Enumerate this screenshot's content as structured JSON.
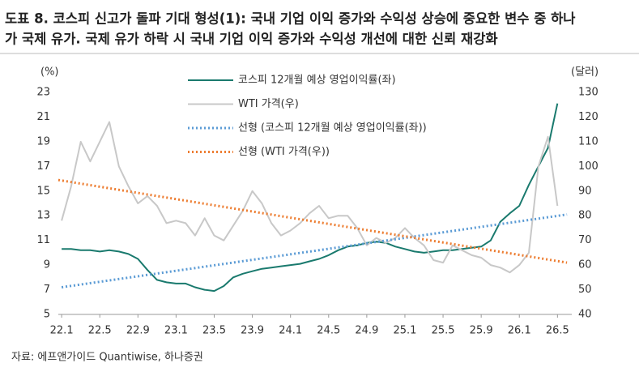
{
  "title_lines": [
    "도표 8. 코스피 신고가 돌파 기대 형성(1): 국내 기업 이익 증가와 수익성 상승에 중요한 변수 중 하나",
    "가 국제 유가. 국제 유가 하락 시 국내 기업 이익 증가와 수익성 개선에 대한 신뢰 재강화"
  ],
  "source": "자료: 에프앤가이드 Quantiwise, 하나증권",
  "chart_data": {
    "type": "line",
    "y_label": "(%)",
    "y2_label": "(달러)",
    "x": [
      0,
      1,
      2,
      3,
      4,
      5,
      6,
      7,
      8,
      9,
      10,
      11,
      12,
      13,
      14,
      15,
      16,
      17,
      18,
      19,
      20,
      21,
      22,
      23,
      24,
      25,
      26,
      27,
      28,
      29,
      30,
      31,
      32,
      33,
      34,
      35,
      36,
      37,
      38,
      39,
      40,
      41,
      42,
      43,
      44,
      45,
      46,
      47,
      48,
      49,
      50,
      51,
      52
    ],
    "xlim": [
      -0.35,
      53.5
    ],
    "xticks": [
      {
        "value": 0,
        "label": "22.1"
      },
      {
        "value": 4,
        "label": "22.5"
      },
      {
        "value": 8,
        "label": "22.9"
      },
      {
        "value": 12,
        "label": "23.1"
      },
      {
        "value": 16,
        "label": "23.5"
      },
      {
        "value": 20,
        "label": "23.9"
      },
      {
        "value": 24,
        "label": "24.1"
      },
      {
        "value": 28,
        "label": "24.5"
      },
      {
        "value": 32,
        "label": "24.9"
      },
      {
        "value": 36,
        "label": "25.1"
      },
      {
        "value": 40,
        "label": "25.5"
      },
      {
        "value": 44,
        "label": "25.9"
      },
      {
        "value": 48,
        "label": "26.1"
      },
      {
        "value": 52,
        "label": "26.5"
      }
    ],
    "ylim": [
      5,
      23
    ],
    "yticks": [
      5,
      7,
      9,
      11,
      13,
      15,
      17,
      19,
      21,
      23
    ],
    "y2lim": [
      40,
      130
    ],
    "y2ticks": [
      40,
      50,
      60,
      70,
      80,
      90,
      100,
      110,
      120,
      130
    ],
    "series": [
      {
        "name": "코스피 12개월 예상 영업이익률(좌)",
        "color": "#1a7a6e",
        "line_style": "solid",
        "values": [
          10.3,
          10.3,
          10.2,
          10.2,
          10.1,
          10.2,
          10.1,
          9.9,
          9.5,
          8.6,
          7.8,
          7.6,
          7.5,
          7.5,
          7.2,
          7.0,
          6.9,
          7.3,
          8.0,
          8.3,
          8.5,
          8.7,
          8.8,
          8.9,
          9.0,
          9.1,
          9.3,
          9.5,
          9.8,
          10.2,
          10.5,
          10.6,
          10.8,
          10.9,
          10.8,
          10.5,
          10.3,
          10.1,
          10.0,
          10.1,
          10.2,
          10.2,
          10.3,
          10.4,
          10.5,
          11.0,
          12.5,
          13.2,
          13.8,
          15.5,
          17.0,
          18.5,
          22.1
        ]
      },
      {
        "name": "WTI 가격(우)",
        "color": "#c8c8c8",
        "line_style": "solid",
        "axis": "y2",
        "values": [
          78,
          92,
          110,
          102,
          110,
          118,
          100,
          92,
          85,
          88,
          84,
          77,
          78,
          77,
          72,
          79,
          72,
          70,
          76,
          82,
          90,
          85,
          77,
          72,
          74,
          77,
          81,
          84,
          79,
          80,
          80,
          75,
          68,
          71,
          69,
          71,
          75,
          71,
          68,
          62,
          61,
          68,
          66,
          64,
          63,
          60,
          59,
          57,
          60,
          65,
          100,
          112,
          84
        ]
      },
      {
        "name": "선형 (코스피 12개월 예상 영업이익률(좌))",
        "color": "#5b9bd5",
        "line_style": "dotted",
        "x": [
          0,
          53
        ],
        "values": [
          7.2,
          13.1
        ]
      },
      {
        "name": "선형 (WTI 가격(우))",
        "color": "#ed7d31",
        "line_style": "dotted",
        "axis": "y2",
        "x": [
          -0.35,
          53
        ],
        "values": [
          94.5,
          61
        ]
      }
    ]
  }
}
